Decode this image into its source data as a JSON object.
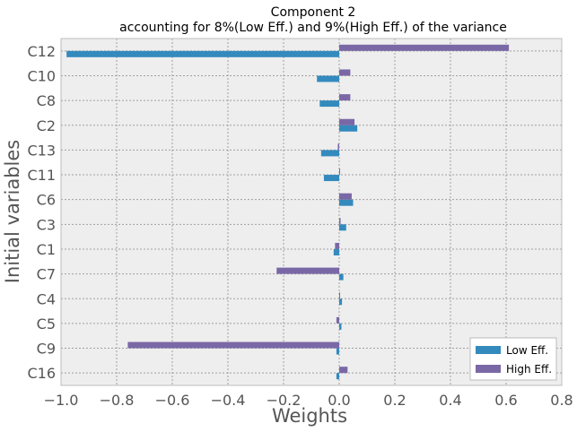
{
  "chart_data": {
    "type": "bar",
    "orientation": "horizontal",
    "title_line1": "Component 2",
    "title_line2": "accounting for  8%(Low Eff.) and  9%(High Eff.) of the variance",
    "xlabel": "Weights",
    "ylabel": "Initial variables",
    "xlim": [
      -1.0,
      0.8
    ],
    "xticks": [
      -1.0,
      -0.8,
      -0.6,
      -0.4,
      -0.2,
      0.0,
      0.2,
      0.4,
      0.6,
      0.8
    ],
    "xtick_labels": [
      "−1.0",
      "−0.8",
      "−0.6",
      "−0.4",
      "−0.2",
      "0.0",
      "0.2",
      "0.4",
      "0.6",
      "0.8"
    ],
    "categories": [
      "C12",
      "C10",
      "C8",
      "C2",
      "C13",
      "C11",
      "C6",
      "C3",
      "C1",
      "C7",
      "C4",
      "C5",
      "C9",
      "C16"
    ],
    "series": [
      {
        "name": "Low Eff.",
        "color": "#348abd",
        "values": [
          -0.98,
          -0.08,
          -0.07,
          0.065,
          -0.065,
          -0.055,
          0.05,
          0.025,
          -0.02,
          0.015,
          0.01,
          0.008,
          -0.01,
          -0.01
        ]
      },
      {
        "name": "High Eff.",
        "color": "#7a68a6",
        "values": [
          0.61,
          0.04,
          0.04,
          0.055,
          -0.005,
          0.0,
          0.045,
          0.005,
          -0.015,
          -0.225,
          0.0,
          -0.01,
          -0.76,
          0.03
        ]
      }
    ],
    "grid": true,
    "legend_position": "lower-right"
  }
}
